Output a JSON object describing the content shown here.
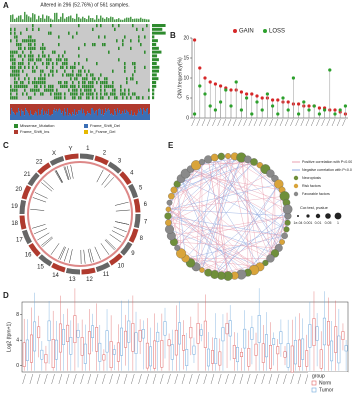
{
  "panel_labels": [
    "A",
    "B",
    "C",
    "D",
    "E"
  ],
  "panel_a": {
    "title": "Altered in 296 (52.76%) of 561 samples.",
    "legend": [
      "Missense_Mutation",
      "Frame_Shift_Del",
      "Frame_Shift_Ins",
      "In_Frame_Del"
    ]
  },
  "chart_data": {
    "type": "lollipop",
    "ylabel": "CNV.frequency(%)",
    "categories": [
      null,
      null,
      null,
      null,
      null,
      null,
      null,
      null,
      null,
      null,
      null,
      null,
      null,
      null,
      null,
      null,
      null,
      null,
      null,
      null,
      null,
      null,
      null,
      null,
      null,
      null,
      null,
      null,
      null,
      null
    ],
    "series": [
      {
        "name": "GAIN",
        "color": "#d62728",
        "values": [
          19.5,
          12.5,
          10,
          9,
          8.5,
          8,
          7.5,
          7,
          7,
          6.5,
          6,
          6,
          5.5,
          5,
          5,
          4.5,
          4.5,
          4,
          4,
          3.5,
          3.5,
          3,
          3,
          3,
          2.5,
          2.5,
          2,
          2,
          1.5,
          1
        ]
      },
      {
        "name": "LOSS",
        "color": "#2ca02c",
        "values": [
          1,
          8,
          6,
          3,
          2,
          4,
          7,
          3,
          9,
          2,
          5,
          1,
          4,
          2,
          6,
          3,
          1,
          5,
          2,
          10,
          1,
          4,
          2,
          3,
          1,
          2,
          12,
          1,
          2,
          3
        ]
      }
    ],
    "ylim": [
      0,
      20
    ],
    "yticks": [
      0,
      5,
      10,
      15,
      20
    ],
    "legend": "top"
  },
  "panel_c": {
    "chromosomes": [
      "1",
      "2",
      "3",
      "4",
      "5",
      "6",
      "7",
      "8",
      "9",
      "10",
      "11",
      "12",
      "13",
      "14",
      "15",
      "16",
      "17",
      "18",
      "19",
      "20",
      "21",
      "22",
      "X",
      "Y"
    ]
  },
  "panel_e": {
    "legend": [
      "Positive correlation with P<0.0001",
      "Negative correlation with P<0.0001",
      "Necroptosis",
      "Risk factors",
      "Favorable factors"
    ],
    "size_title": "Cor.test, pvalue",
    "size_labels": [
      "1e-04",
      "0.001",
      "0.01",
      "0.05",
      "1"
    ]
  },
  "panel_d": {
    "ylabel": "Log2 (tpm+1)",
    "yticks": [
      0,
      4,
      8
    ],
    "ylim": [
      -1,
      10
    ],
    "legend_title": "group",
    "groups": [
      "Norm",
      "Tumor"
    ]
  }
}
